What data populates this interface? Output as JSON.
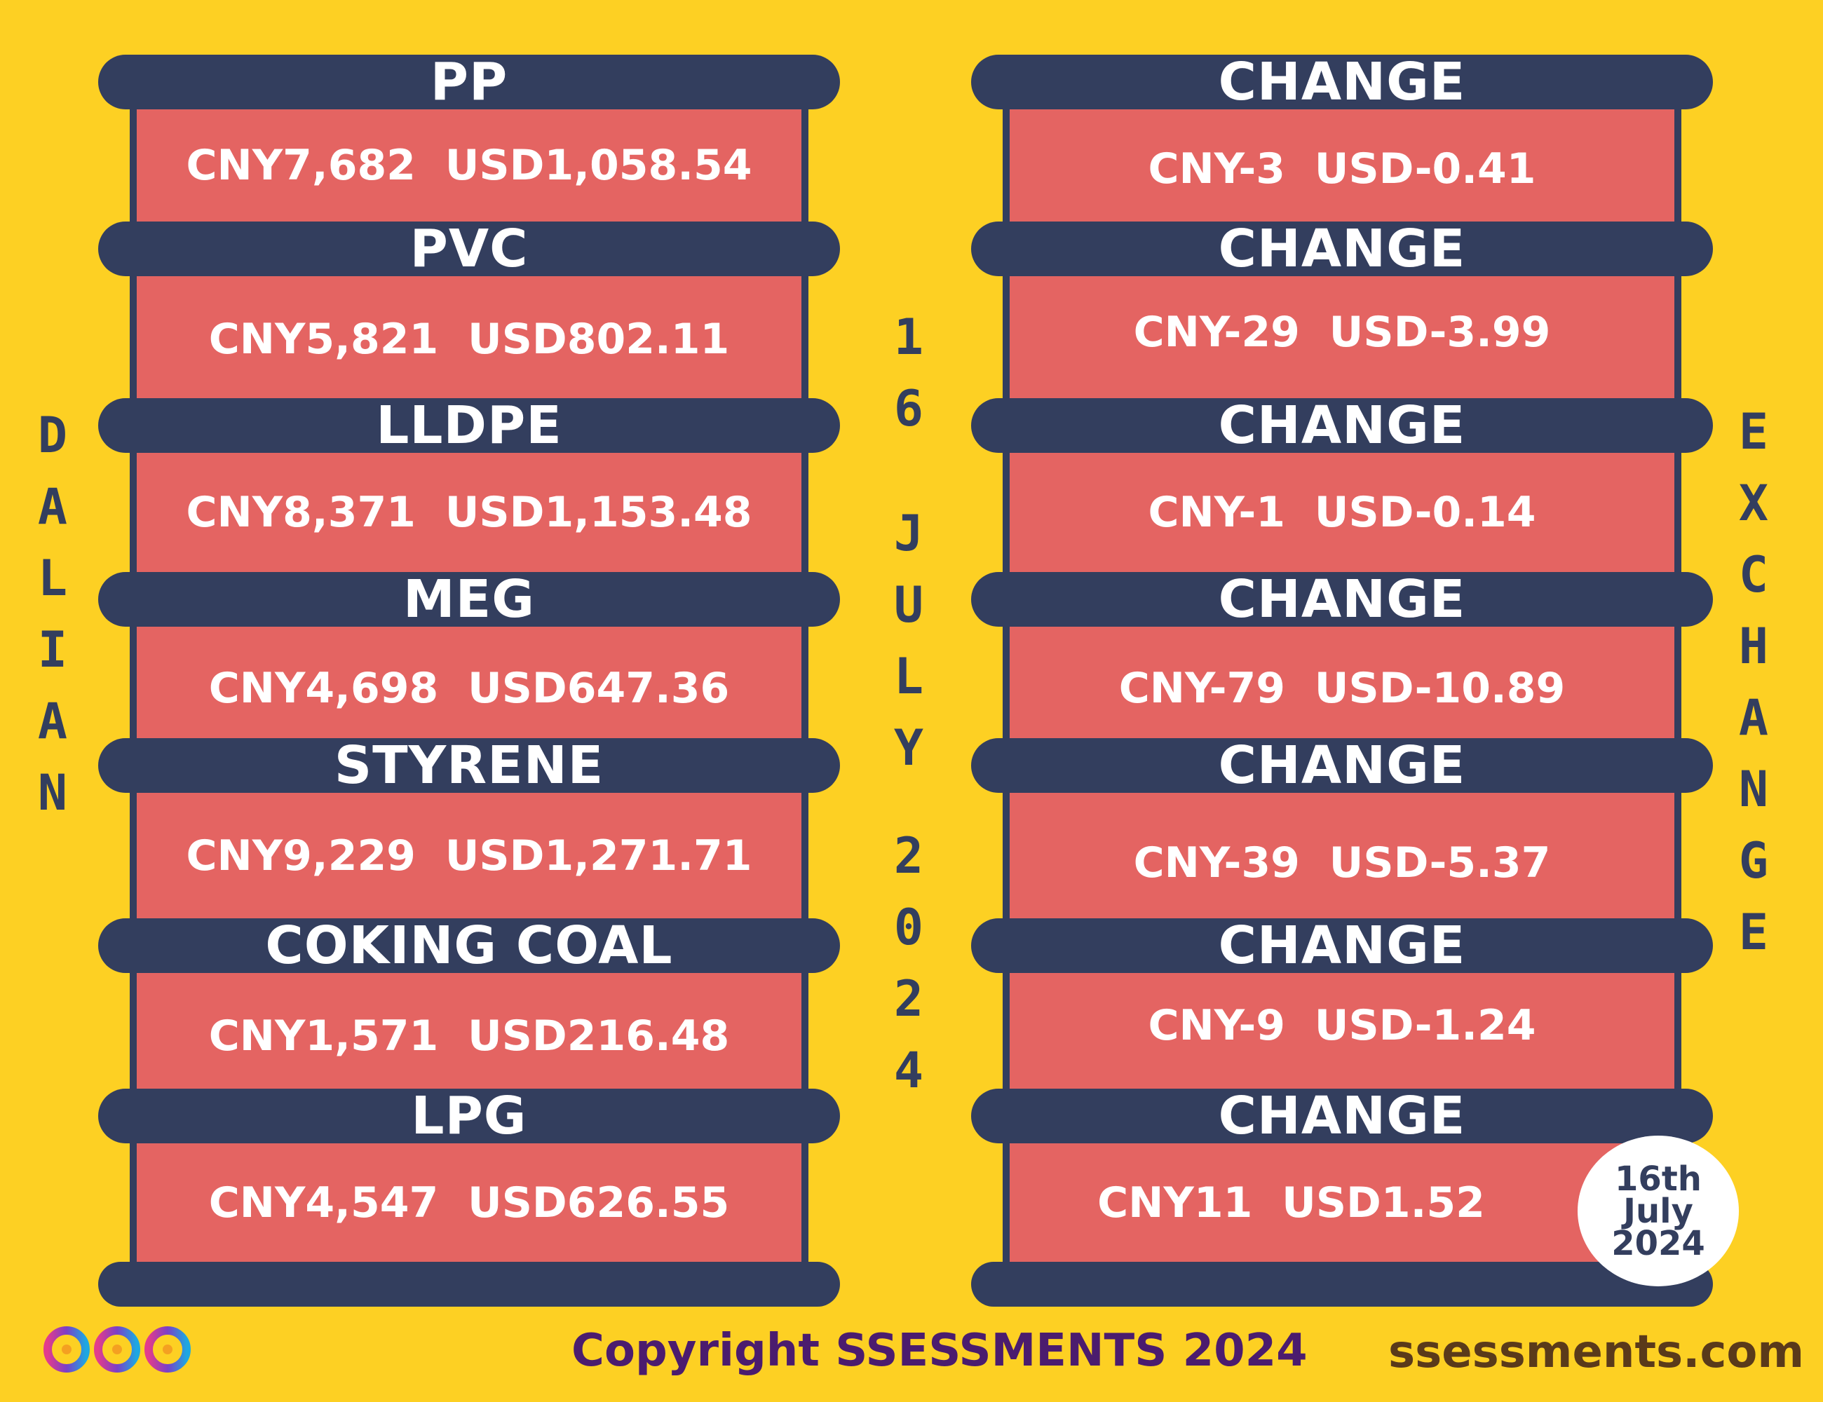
{
  "left_header": "DALIAN",
  "right_header": "EXCHANGE",
  "date_vertical": {
    "day": "16",
    "month": "JULY",
    "year": "2024"
  },
  "products": [
    {
      "name": "PP",
      "price": "CNY7,682  USD1,058.54",
      "change_label": "CHANGE",
      "change": "CNY-3  USD-0.41"
    },
    {
      "name": "PVC",
      "price": "CNY5,821  USD802.11",
      "change_label": "CHANGE",
      "change": "CNY-29  USD-3.99"
    },
    {
      "name": "LLDPE",
      "price": "CNY8,371  USD1,153.48",
      "change_label": "CHANGE",
      "change": "CNY-1  USD-0.14"
    },
    {
      "name": "MEG",
      "price": "CNY4,698  USD647.36",
      "change_label": "CHANGE",
      "change": "CNY-79  USD-10.89"
    },
    {
      "name": "STYRENE",
      "price": "CNY9,229  USD1,271.71",
      "change_label": "CHANGE",
      "change": "CNY-39  USD-5.37"
    },
    {
      "name": "COKING COAL",
      "price": "CNY1,571  USD216.48",
      "change_label": "CHANGE",
      "change": "CNY-9  USD-1.24"
    },
    {
      "name": "LPG",
      "price": "CNY4,547  USD626.55",
      "change_label": "CHANGE",
      "change": "CNY11  USD1.52"
    }
  ],
  "stamp": {
    "line1": "16th",
    "line2": "July",
    "line3": "2024"
  },
  "footer": {
    "copyright": "Copyright SSESSMENTS 2024",
    "website": "ssessments.com"
  },
  "colors": {
    "background": "#FDD023",
    "band": "#333E5E",
    "panel": "#E46462",
    "footer_purple": "#4B1C6E",
    "footer_brown": "#5A3A1A"
  }
}
